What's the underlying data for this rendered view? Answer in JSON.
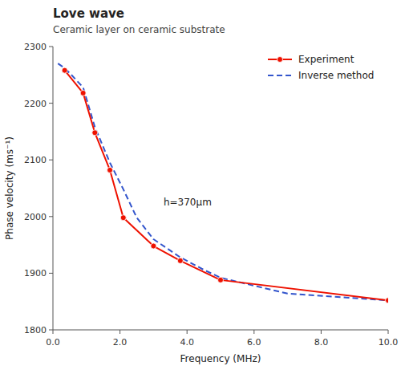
{
  "chart_data": {
    "type": "line",
    "title": "Love wave",
    "subtitle": "Ceramic layer on ceramic substrate",
    "x_label": "Frequency (MHz)",
    "y_label": "Phase velocity (ms⁻¹)",
    "xlim": [
      0.0,
      10.0
    ],
    "ylim": [
      1800,
      2300
    ],
    "xticks": [
      {
        "value": 0.0,
        "label": "0.0"
      },
      {
        "value": 2.0,
        "label": "2.0"
      },
      {
        "value": 4.0,
        "label": "4.0"
      },
      {
        "value": 6.0,
        "label": "6.0"
      },
      {
        "value": 8.0,
        "label": "8.0"
      },
      {
        "value": 10.0,
        "label": "10.0"
      }
    ],
    "yticks": [
      1800,
      1900,
      2000,
      2100,
      2200,
      2300
    ],
    "grid": false,
    "legend": "upper right",
    "series": [
      {
        "name": "Experiment",
        "color": "#ee1100",
        "line_style": "solid",
        "marker": "circle",
        "x": [
          0.35,
          0.9,
          1.25,
          1.7,
          2.1,
          3.0,
          3.8,
          5.0,
          10.0
        ],
        "values": [
          2258,
          2218,
          2148,
          2082,
          1998,
          1948,
          1922,
          1888,
          1852
        ]
      },
      {
        "name": "Inverse method",
        "color": "#3355cc",
        "line_style": "dashed",
        "marker": "none",
        "x": [
          0.15,
          0.35,
          0.55,
          0.9,
          1.25,
          1.7,
          2.1,
          2.5,
          3.0,
          3.5,
          3.8,
          4.5,
          5.0,
          7.0,
          10.0
        ],
        "values": [
          2270,
          2262,
          2250,
          2228,
          2158,
          2095,
          2048,
          1998,
          1960,
          1940,
          1928,
          1906,
          1892,
          1864,
          1852
        ]
      }
    ],
    "annotations": [
      {
        "text": "h=370μm",
        "x": 3.3,
        "y": 2025
      }
    ]
  }
}
